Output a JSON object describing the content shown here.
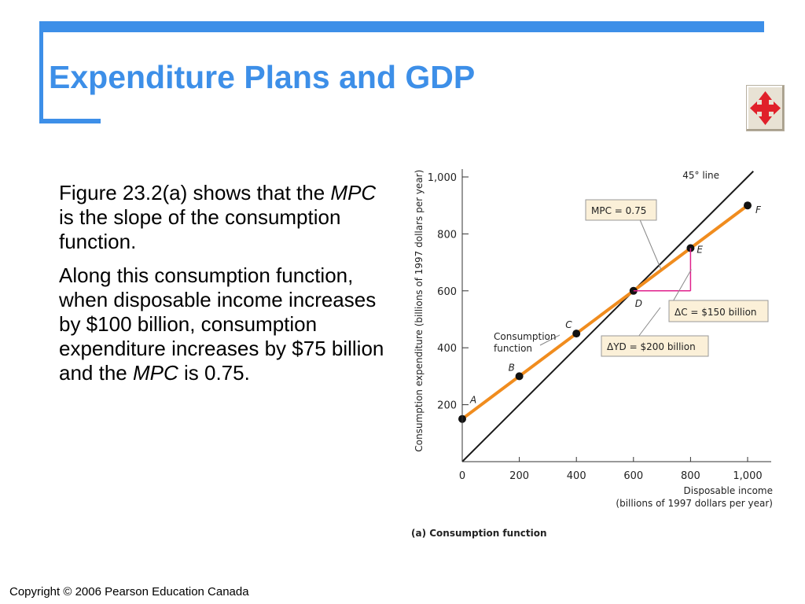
{
  "slide": {
    "title": "Expenditure Plans and GDP",
    "copyright": "Copyright © 2006 Pearson Education Canada",
    "nav_button_icon": "four-way-arrow-icon",
    "accent_color": "#3d8fe8",
    "nav_arrow_color": "#e0202a"
  },
  "text": {
    "p1": [
      "Figure 23.2(a) shows that the ",
      "MPC",
      " is the slope of the consumption function."
    ],
    "p2": [
      "Along this consumption function, when disposable income increases by $100 billion, consumption expenditure increases by $75 billion and the ",
      "MPC",
      " is 0.75."
    ]
  },
  "chart_data": {
    "type": "line",
    "caption": "(a) Consumption function",
    "xlabel": [
      "Disposable income",
      "(billions of 1997 dollars per year)"
    ],
    "ylabel": "Consumption expenditure (billions of 1997 dollars per year)",
    "xlim": [
      0,
      1000
    ],
    "ylim": [
      0,
      1000
    ],
    "xticks": [
      "0",
      "200",
      "400",
      "600",
      "800",
      "1,000"
    ],
    "xtick_values": [
      0,
      200,
      400,
      600,
      800,
      1000
    ],
    "yticks": [
      "200",
      "400",
      "600",
      "800",
      "1,000"
    ],
    "ytick_values": [
      200,
      400,
      600,
      800,
      1000
    ],
    "series": [
      {
        "name": "45° line",
        "color": "#1a1a1a",
        "x": [
          0,
          1000
        ],
        "y": [
          0,
          1000
        ]
      },
      {
        "name": "Consumption function",
        "color": "#f08c1e",
        "x": [
          0,
          1000
        ],
        "y": [
          150,
          900
        ]
      }
    ],
    "points": [
      {
        "label": "A",
        "x": 0,
        "y": 150
      },
      {
        "label": "B",
        "x": 200,
        "y": 300
      },
      {
        "label": "C",
        "x": 400,
        "y": 450
      },
      {
        "label": "D",
        "x": 600,
        "y": 600
      },
      {
        "label": "E",
        "x": 800,
        "y": 750
      },
      {
        "label": "F",
        "x": 1000,
        "y": 900
      }
    ],
    "annotations": {
      "line_label": "45° line",
      "consumption_label": [
        "Consumption",
        "function"
      ],
      "mpc": "MPC = 0.75",
      "delta_c": "ΔC = $150 billion",
      "delta_yd": "ΔYD = $200 billion",
      "triangle_color": "#e0208c",
      "box_fill": "#fbf0d8"
    }
  }
}
